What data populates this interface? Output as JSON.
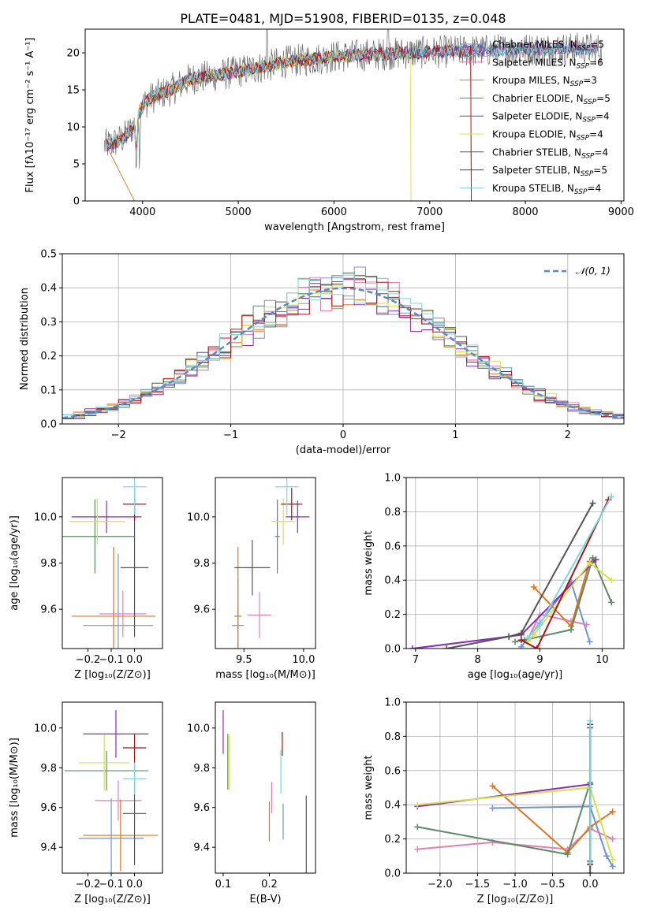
{
  "title": "PLATE=0481, MJD=51908, FIBERID=0135, z=0.048",
  "colors": {
    "Chabrier MILES": "#6f93d6",
    "Salpeter MILES": "#e27fb6",
    "Kroupa MILES": "#e0741c",
    "Chabrier ELODIE": "#5e8a66",
    "Salpeter ELODIE": "#8b2cb5",
    "Kroupa ELODIE": "#d8e04a",
    "Chabrier STELIB": "#555555",
    "Salpeter STELIB": "#b01010",
    "Kroupa STELIB": "#7fd6e0"
  },
  "chart_data": [
    {
      "id": "spectrum",
      "type": "line",
      "xlabel": "wavelength [Angstrom, rest frame]",
      "ylabel": "Flux [fλ10⁻¹⁷ erg cm⁻² s⁻¹ A⁻¹]",
      "xlim": [
        3400,
        9030
      ],
      "ylim": [
        0,
        23.2
      ],
      "xticks": [
        4000,
        5000,
        6000,
        7000,
        8000,
        9000
      ],
      "yticks": [
        0,
        5,
        10,
        15,
        20
      ],
      "legend_placement": "top-right",
      "legend": [
        {
          "model": "Chabrier MILES",
          "label": "Chabrier MILES, N",
          "nssp": "=5"
        },
        {
          "model": "Salpeter MILES",
          "label": "Salpeter MILES, N",
          "nssp": "=6"
        },
        {
          "model": "Kroupa MILES",
          "label": "Kroupa MILES, N",
          "nssp": "=3"
        },
        {
          "model": "Chabrier ELODIE",
          "label": "Chabrier ELODIE, N",
          "nssp": "=5"
        },
        {
          "model": "Salpeter ELODIE",
          "label": "Salpeter ELODIE, N",
          "nssp": "=4"
        },
        {
          "model": "Kroupa ELODIE",
          "label": "Kroupa ELODIE, N",
          "nssp": "=4"
        },
        {
          "model": "Chabrier STELIB",
          "label": "Chabrier STELIB, N",
          "nssp": "=4"
        },
        {
          "model": "Salpeter STELIB",
          "label": "Salpeter STELIB, N",
          "nssp": "=5"
        },
        {
          "model": "Kroupa STELIB",
          "label": "Kroupa STELIB, N",
          "nssp": "=4"
        }
      ],
      "nssp_subscript": "SSP",
      "continuum": [
        [
          3600,
          7.5
        ],
        [
          3700,
          7.8
        ],
        [
          3800,
          8.5
        ],
        [
          3900,
          10.0
        ],
        [
          4000,
          13.0
        ],
        [
          4100,
          14.0
        ],
        [
          4300,
          15.0
        ],
        [
          4500,
          16.5
        ],
        [
          4800,
          17.0
        ],
        [
          5000,
          17.5
        ],
        [
          5300,
          18.2
        ],
        [
          5500,
          18.8
        ],
        [
          5800,
          19.2
        ],
        [
          6000,
          19.5
        ],
        [
          6300,
          19.7
        ],
        [
          6600,
          19.9
        ],
        [
          7000,
          20.1
        ],
        [
          7500,
          20.3
        ],
        [
          8000,
          20.5
        ],
        [
          8500,
          20.6
        ],
        [
          8800,
          20.5
        ]
      ]
    },
    {
      "id": "residuals",
      "type": "histogram",
      "xlabel": "(data-model)/error",
      "ylabel": "Normed distribution",
      "xlim": [
        -2.5,
        2.5
      ],
      "ylim": [
        0,
        0.5
      ],
      "xticks": [
        -2,
        -1,
        0,
        1,
        2
      ],
      "xtick_labels": [
        "−2",
        "−1",
        "0",
        "1",
        "2"
      ],
      "yticks": [
        0.0,
        0.1,
        0.2,
        0.3,
        0.4,
        0.5
      ],
      "ytick_labels": [
        "0.0",
        "0.1",
        "0.2",
        "0.3",
        "0.4",
        "0.5"
      ],
      "grid": true,
      "legend_placement": "top-right",
      "normal_label": "𝒩(0, 1)",
      "bin_width": 0.1
    },
    {
      "id": "age-vs-Z",
      "type": "errorbar",
      "xlabel": "Z [log₁₀(Z/Z⊙)]",
      "ylabel": "age  [log₁₀(age/yr)]",
      "xlim": [
        -0.31,
        0.12
      ],
      "ylim": [
        9.43,
        10.17
      ],
      "xticks": [
        -0.2,
        -0.1,
        0.0
      ],
      "xtick_labels": [
        "−0.2",
        "−0.1",
        "0.0"
      ],
      "yticks": [
        9.6,
        9.8,
        10.0
      ],
      "ytick_labels": [
        "9.6",
        "9.8",
        "10.0"
      ],
      "points": [
        {
          "model": "Chabrier MILES",
          "x": -0.07,
          "xerr": 0.15,
          "y": 9.53,
          "yerr": 0.31
        },
        {
          "model": "Salpeter MILES",
          "x": -0.05,
          "xerr": 0.1,
          "y": 9.58,
          "yerr": 0.1
        },
        {
          "model": "Kroupa MILES",
          "x": -0.09,
          "xerr": 0.18,
          "y": 9.57,
          "yerr": 0.3
        },
        {
          "model": "Chabrier ELODIE",
          "x": -0.17,
          "xerr": 0.17,
          "y": 9.915,
          "yerr": 0.16
        },
        {
          "model": "Salpeter ELODIE",
          "x": -0.12,
          "xerr": 0.15,
          "y": 10.0,
          "yerr": 0.07
        },
        {
          "model": "Kroupa ELODIE",
          "x": -0.16,
          "xerr": 0.12,
          "y": 9.98,
          "yerr": 0.1
        },
        {
          "model": "Chabrier STELIB",
          "x": 0.0,
          "xerr": 0.06,
          "y": 9.78,
          "yerr": 0.3
        },
        {
          "model": "Salpeter STELIB",
          "x": 0.0,
          "xerr": 0.05,
          "y": 10.055,
          "yerr": 0.07
        },
        {
          "model": "Kroupa STELIB",
          "x": 0.0,
          "xerr": 0.05,
          "y": 10.13,
          "yerr": 0.12
        }
      ]
    },
    {
      "id": "age-vs-mass",
      "type": "errorbar",
      "xlabel": "mass [log₁₀(M/M⊙)]",
      "xlim": [
        9.26,
        10.1
      ],
      "ylim": [
        9.43,
        10.17
      ],
      "xticks": [
        9.5,
        10.0
      ],
      "xtick_labels": [
        "9.5",
        "10.0"
      ],
      "yticks": [
        9.6,
        9.8,
        10.0
      ],
      "ytick_labels": [
        "9.6",
        "9.8",
        "10.0"
      ],
      "points": [
        {
          "model": "Chabrier MILES",
          "x": 9.45,
          "xerr": 0.05,
          "y": 9.53,
          "yerr": 0.2
        },
        {
          "model": "Salpeter MILES",
          "x": 9.63,
          "xerr": 0.1,
          "y": 9.575,
          "yerr": 0.1
        },
        {
          "model": "Kroupa MILES",
          "x": 9.45,
          "xerr": 0.03,
          "y": 9.57,
          "yerr": 0.3
        },
        {
          "model": "Chabrier ELODIE",
          "x": 9.78,
          "xerr": 0.02,
          "y": 9.915,
          "yerr": 0.16
        },
        {
          "model": "Salpeter ELODIE",
          "x": 9.95,
          "xerr": 0.1,
          "y": 10.0,
          "yerr": 0.07
        },
        {
          "model": "Kroupa ELODIE",
          "x": 9.83,
          "xerr": 0.1,
          "y": 9.98,
          "yerr": 0.1
        },
        {
          "model": "Chabrier STELIB",
          "x": 9.57,
          "xerr": 0.15,
          "y": 9.78,
          "yerr": 0.12
        },
        {
          "model": "Salpeter STELIB",
          "x": 9.9,
          "xerr": 0.09,
          "y": 10.055,
          "yerr": 0.07
        },
        {
          "model": "Kroupa STELIB",
          "x": 9.86,
          "xerr": 0.1,
          "y": 10.13,
          "yerr": 0.12
        }
      ]
    },
    {
      "id": "weight-vs-age",
      "type": "line",
      "xlabel": "age  [log₁₀(age/yr)]",
      "ylabel": "mass weight",
      "xlim": [
        6.85,
        10.35
      ],
      "ylim": [
        0,
        1.0
      ],
      "xticks": [
        7,
        8,
        9,
        10
      ],
      "yticks": [
        0.0,
        0.2,
        0.4,
        0.6,
        0.8,
        1.0
      ],
      "ytick_labels": [
        "0.0",
        "0.2",
        "0.4",
        "0.6",
        "0.8",
        "1.0"
      ],
      "grid": true,
      "series": [
        {
          "model": "Chabrier MILES",
          "x": [
            8.7,
            9.0,
            9.5,
            9.8
          ],
          "y": [
            0.01,
            0.15,
            0.39,
            0.04
          ]
        },
        {
          "model": "Salpeter MILES",
          "x": [
            8.8,
            9.0,
            9.5,
            9.75
          ],
          "y": [
            0.05,
            0.2,
            0.16,
            0.14
          ]
        },
        {
          "model": "Kroupa MILES",
          "x": [
            8.9,
            9.5,
            9.8
          ],
          "y": [
            0.36,
            0.13,
            0.51
          ]
        },
        {
          "model": "Chabrier ELODIE",
          "x": [
            8.6,
            8.75,
            9.5,
            9.85,
            10.15
          ],
          "y": [
            0.04,
            0.05,
            0.11,
            0.53,
            0.27
          ]
        },
        {
          "model": "Salpeter ELODIE",
          "x": [
            6.95,
            8.5,
            8.7,
            9.9
          ],
          "y": [
            0.0,
            0.07,
            0.08,
            0.52
          ]
        },
        {
          "model": "Kroupa ELODIE",
          "x": [
            8.8,
            8.9,
            9.8,
            10.15
          ],
          "y": [
            0.04,
            0.08,
            0.5,
            0.4
          ]
        },
        {
          "model": "Chabrier STELIB",
          "x": [
            7.5,
            8.5,
            8.7,
            9.85
          ],
          "y": [
            0.0,
            0.07,
            0.09,
            0.85
          ]
        },
        {
          "model": "Salpeter STELIB",
          "x": [
            8.7,
            8.95,
            10.1
          ],
          "y": [
            0.05,
            0.0,
            0.87
          ]
        },
        {
          "model": "Kroupa STELIB",
          "x": [
            8.8,
            9.0,
            10.15
          ],
          "y": [
            0.06,
            0.14,
            0.89
          ]
        }
      ]
    },
    {
      "id": "mass-vs-Z",
      "type": "errorbar",
      "xlabel": "Z [log₁₀(Z/Z⊙)]",
      "ylabel": "mass [log₁₀(M/M⊙)]",
      "xlim": [
        -0.31,
        0.12
      ],
      "ylim": [
        9.27,
        10.13
      ],
      "xticks": [
        -0.2,
        -0.1,
        0.0
      ],
      "xtick_labels": [
        "−0.2",
        "−0.1",
        "0.0"
      ],
      "yticks": [
        9.4,
        9.6,
        9.8,
        10.0
      ],
      "ytick_labels": [
        "9.4",
        "9.6",
        "9.8",
        "10.0"
      ],
      "points": [
        {
          "model": "Chabrier MILES",
          "x": -0.1,
          "xerr": 0.14,
          "y": 9.445,
          "yerr": 0.2
        },
        {
          "model": "Salpeter MILES",
          "x": -0.07,
          "xerr": 0.1,
          "y": 9.635,
          "yerr": 0.1
        },
        {
          "model": "Kroupa MILES",
          "x": -0.06,
          "xerr": 0.16,
          "y": 9.46,
          "yerr": 0.18
        },
        {
          "model": "Chabrier ELODIE",
          "x": -0.12,
          "xerr": 0.18,
          "y": 9.785,
          "yerr": 0.1
        },
        {
          "model": "Salpeter ELODIE",
          "x": -0.08,
          "xerr": 0.14,
          "y": 9.97,
          "yerr": 0.12
        },
        {
          "model": "Kroupa ELODIE",
          "x": -0.13,
          "xerr": 0.11,
          "y": 9.825,
          "yerr": 0.14
        },
        {
          "model": "Chabrier STELIB",
          "x": 0.0,
          "xerr": 0.05,
          "y": 9.57,
          "yerr": 0.26
        },
        {
          "model": "Salpeter STELIB",
          "x": 0.0,
          "xerr": 0.05,
          "y": 9.9,
          "yerr": 0.07
        },
        {
          "model": "Kroupa STELIB",
          "x": 0.0,
          "xerr": 0.05,
          "y": 9.745,
          "yerr": 0.08
        }
      ]
    },
    {
      "id": "mass-vs-ebv",
      "type": "errorbar",
      "xlabel": "E(B-V)",
      "xlim": [
        0.083,
        0.3
      ],
      "ylim": [
        9.27,
        10.13
      ],
      "xticks": [
        0.1,
        0.2
      ],
      "xtick_labels": [
        "0.1",
        "0.2"
      ],
      "yticks": [
        9.4,
        9.6,
        9.8,
        10.0
      ],
      "ytick_labels": [
        "9.4",
        "9.6",
        "9.8",
        "10.0"
      ],
      "points": [
        {
          "model": "Chabrier MILES",
          "x": 0.23,
          "y": 9.53,
          "yerr": 0.09
        },
        {
          "model": "Salpeter MILES",
          "x": 0.205,
          "y": 9.65,
          "yerr": 0.08
        },
        {
          "model": "Kroupa MILES",
          "x": 0.2,
          "y": 9.53,
          "yerr": 0.1
        },
        {
          "model": "Chabrier ELODIE",
          "x": 0.11,
          "y": 9.83,
          "yerr": 0.14
        },
        {
          "model": "Salpeter ELODIE",
          "x": 0.1,
          "y": 9.98,
          "yerr": 0.11
        },
        {
          "model": "Kroupa ELODIE",
          "x": 0.113,
          "y": 9.83,
          "yerr": 0.14
        },
        {
          "model": "Chabrier STELIB",
          "x": 0.28,
          "y": 9.42,
          "yerr": 0.24
        },
        {
          "model": "Salpeter STELIB",
          "x": 0.228,
          "y": 9.92,
          "yerr": 0.06
        },
        {
          "model": "Kroupa STELIB",
          "x": 0.225,
          "y": 9.78,
          "yerr": 0.11
        }
      ]
    },
    {
      "id": "weight-vs-Z",
      "type": "line",
      "xlabel": "Z [log₁₀(Z/Z⊙)]",
      "ylabel": "mass weight",
      "xlim": [
        -2.45,
        0.45
      ],
      "ylim": [
        0,
        1.0
      ],
      "xticks": [
        -2.0,
        -1.5,
        -1.0,
        -0.5,
        0.0
      ],
      "xtick_labels": [
        "−2.0",
        "−1.5",
        "−1.0",
        "−0.5",
        "0.0"
      ],
      "yticks": [
        0.0,
        0.2,
        0.4,
        0.6,
        0.8,
        1.0
      ],
      "ytick_labels": [
        "0.0",
        "0.2",
        "0.4",
        "0.6",
        "0.8",
        "1.0"
      ],
      "grid": true,
      "series": [
        {
          "model": "Chabrier MILES",
          "x": [
            -1.3,
            0.0,
            0.22,
            0.3
          ],
          "y": [
            0.38,
            0.39,
            0.1,
            0.04
          ]
        },
        {
          "model": "Salpeter MILES",
          "x": [
            -2.3,
            -1.3,
            -0.3,
            0.0,
            0.3
          ],
          "y": [
            0.14,
            0.18,
            0.14,
            0.26,
            0.2
          ]
        },
        {
          "model": "Kroupa MILES",
          "x": [
            -1.3,
            -0.3,
            0.0,
            0.3
          ],
          "y": [
            0.51,
            0.12,
            0.27,
            0.36
          ]
        },
        {
          "model": "Chabrier ELODIE",
          "x": [
            -2.3,
            -0.3,
            0.0
          ],
          "y": [
            0.27,
            0.11,
            0.53
          ]
        },
        {
          "model": "Salpeter ELODIE",
          "x": [
            -2.3,
            0.0
          ],
          "y": [
            0.39,
            0.52
          ]
        },
        {
          "model": "Kroupa ELODIE",
          "x": [
            -2.3,
            0.0,
            0.3
          ],
          "y": [
            0.4,
            0.5,
            0.08
          ]
        },
        {
          "model": "Chabrier STELIB",
          "x": [
            0.0,
            0.0,
            0.0
          ],
          "y": [
            0.07,
            0.85,
            0.0
          ]
        },
        {
          "model": "Salpeter STELIB",
          "x": [
            0.0,
            0.0
          ],
          "y": [
            0.87,
            0.05
          ]
        },
        {
          "model": "Kroupa STELIB",
          "x": [
            0.0,
            0.0
          ],
          "y": [
            0.89,
            0.06
          ]
        }
      ]
    }
  ]
}
